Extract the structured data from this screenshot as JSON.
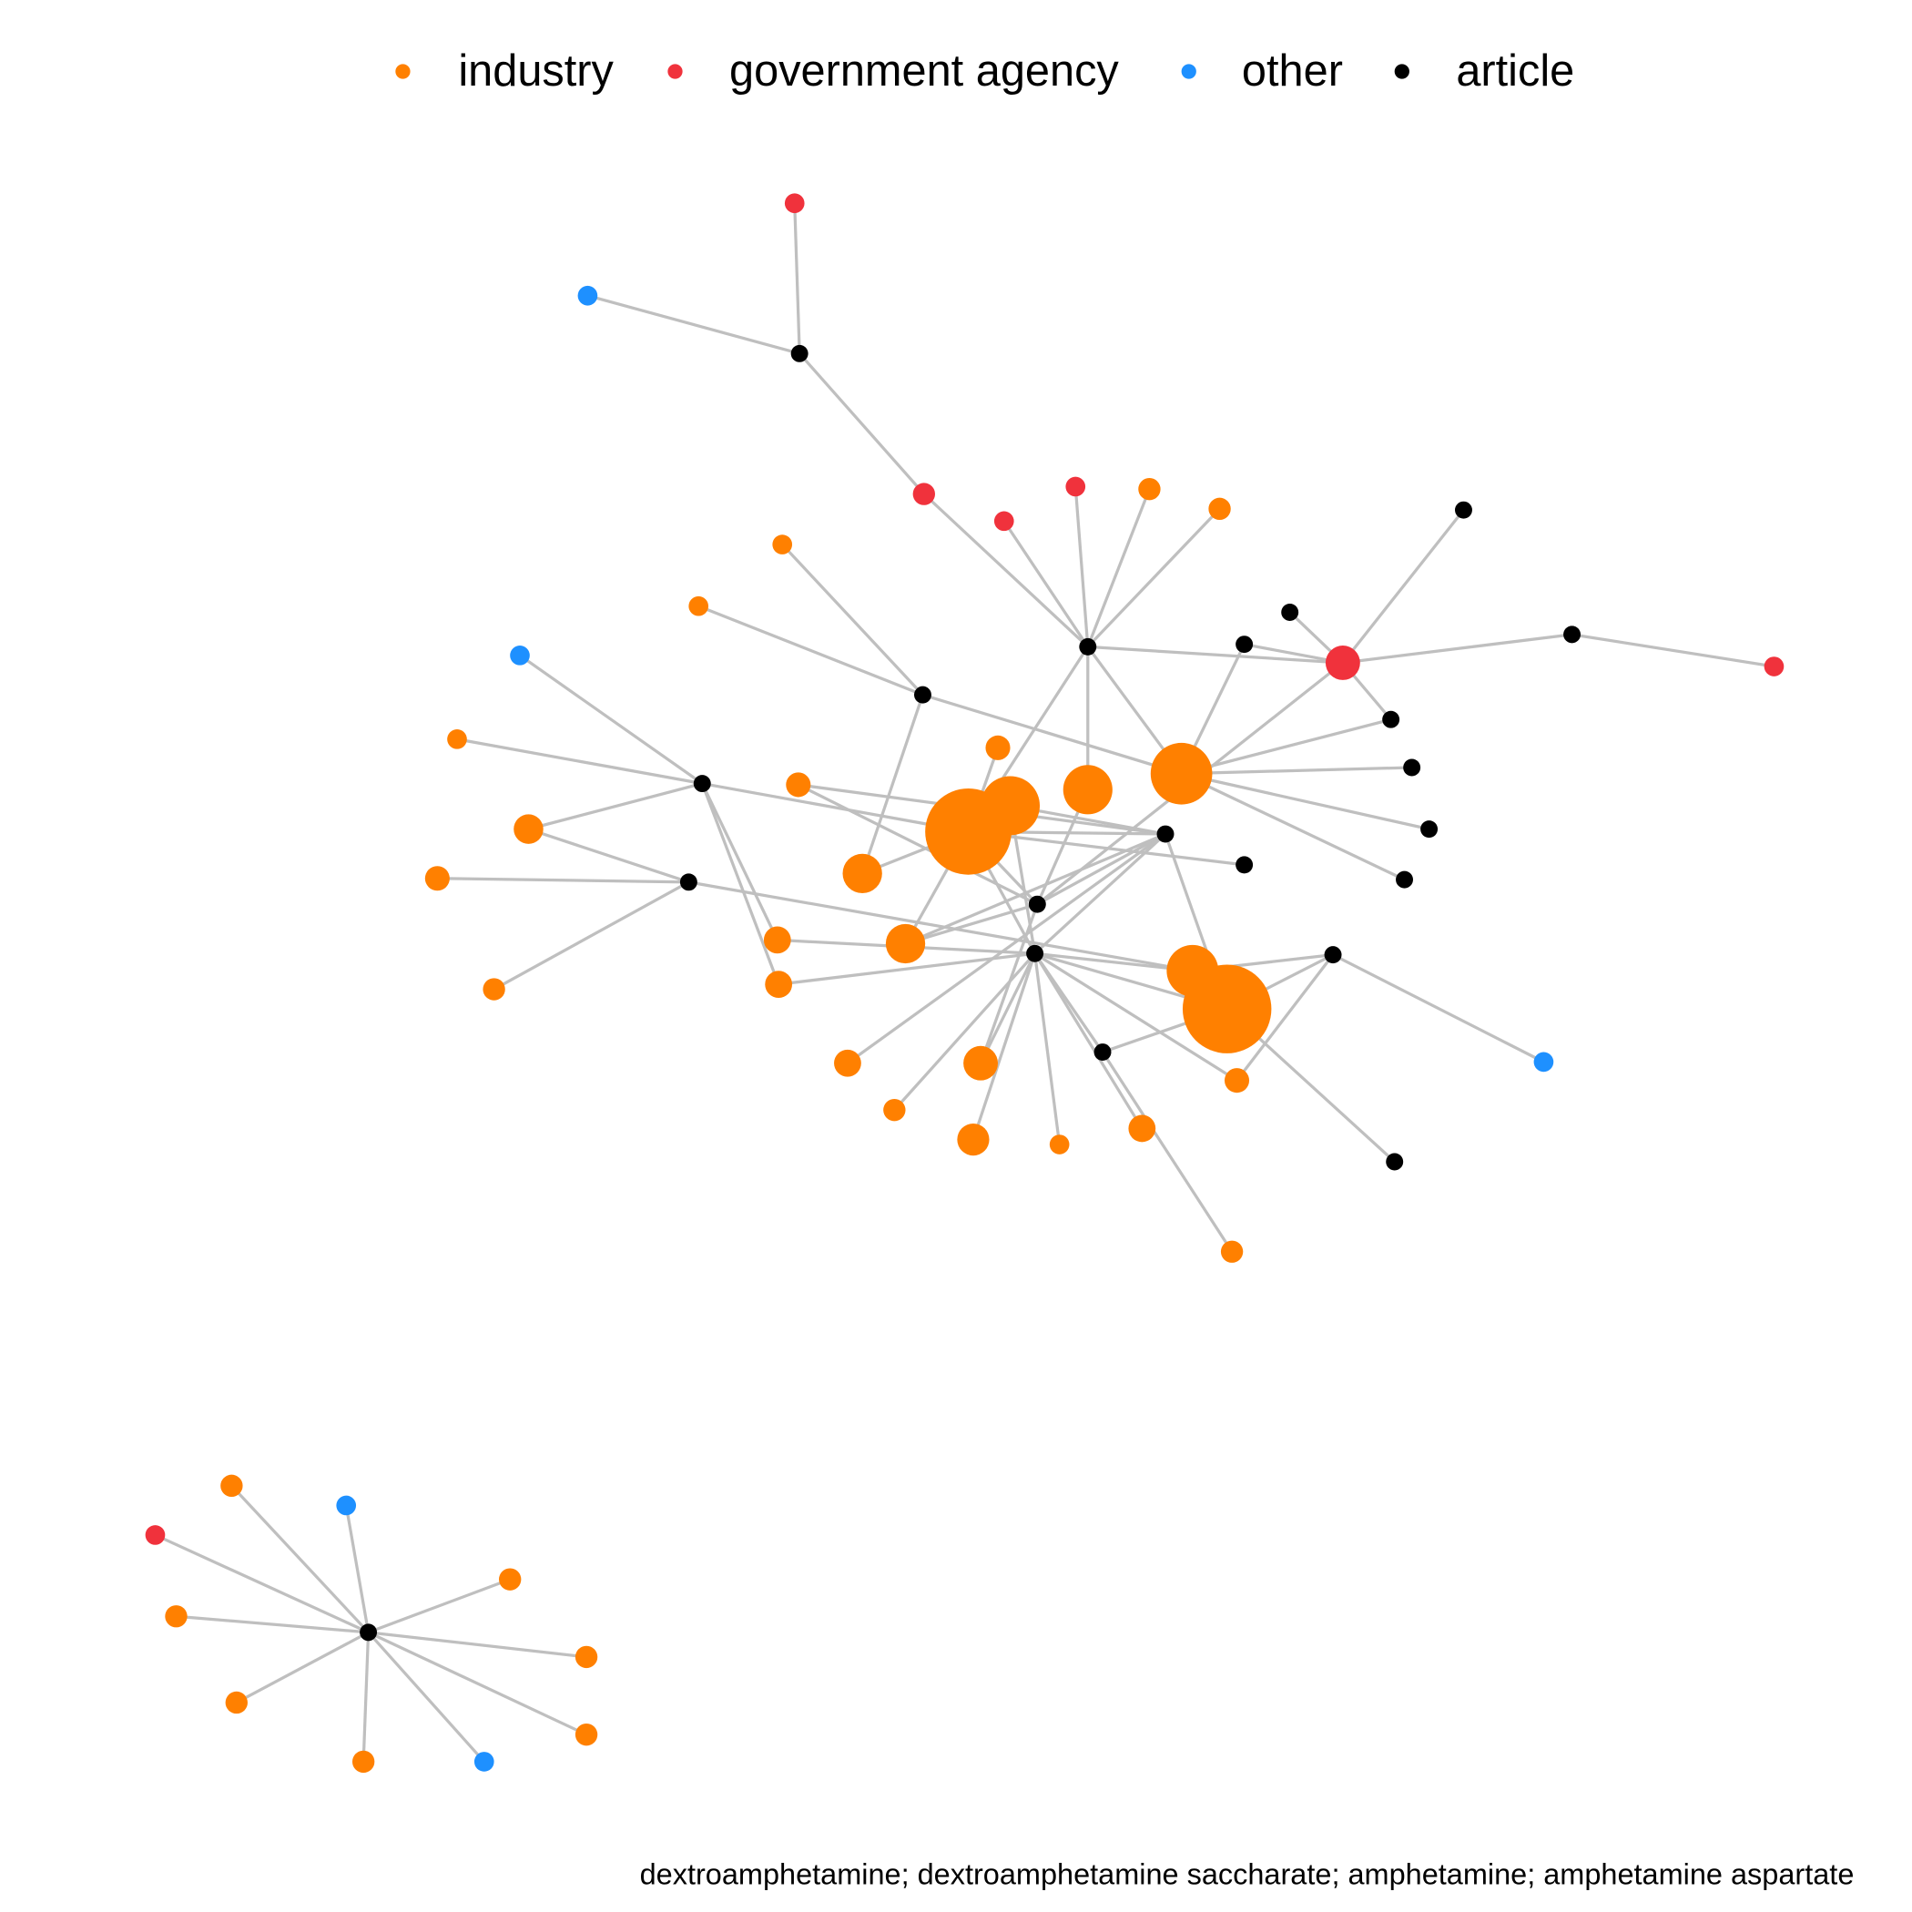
{
  "legend": [
    {
      "label": "industry",
      "color": "#ff8000"
    },
    {
      "label": "government agency",
      "color": "#f0323c"
    },
    {
      "label": "other",
      "color": "#1e90ff"
    },
    {
      "label": "article",
      "color": "#000000"
    }
  ],
  "caption": "dextroamphetamine; dextroamphetamine saccharate; amphetamine; amphetamine aspartate"
}
